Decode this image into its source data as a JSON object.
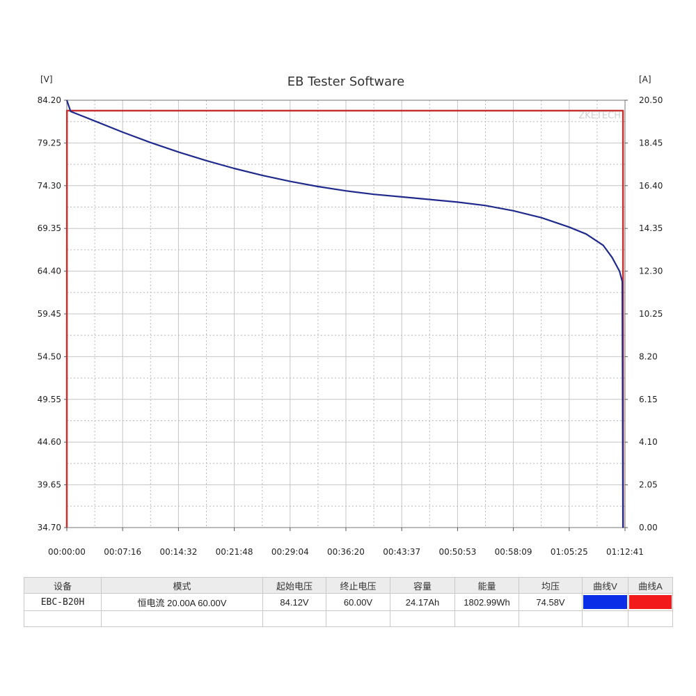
{
  "chart_data": {
    "type": "line",
    "title": "EB Tester Software",
    "watermark": "ZKETECH",
    "y_left_unit": "[V]",
    "y_right_unit": "[A]",
    "y_left_ticks": [
      "84.20",
      "79.25",
      "74.30",
      "69.35",
      "64.40",
      "59.45",
      "54.50",
      "49.55",
      "44.60",
      "39.65",
      "34.70"
    ],
    "y_right_ticks": [
      "20.50",
      "18.45",
      "16.40",
      "14.35",
      "12.30",
      "10.25",
      "8.20",
      "6.15",
      "4.10",
      "2.05",
      "0.00"
    ],
    "x_ticks": [
      "00:00:00",
      "00:07:16",
      "00:14:32",
      "00:21:48",
      "00:29:04",
      "00:36:20",
      "00:43:37",
      "00:50:53",
      "00:58:09",
      "01:05:25",
      "01:12:41"
    ],
    "ylim_left": [
      34.7,
      84.2
    ],
    "ylim_right": [
      0,
      20.5
    ],
    "xlim": [
      "00:00:00",
      "01:12:41"
    ],
    "grid": true,
    "series": [
      {
        "name": "曲线V",
        "axis": "left",
        "color": "#1f2a8c",
        "x": [
          "00:00:00",
          "00:00:30",
          "00:03:38",
          "00:07:16",
          "00:10:54",
          "00:14:32",
          "00:18:10",
          "00:21:48",
          "00:25:26",
          "00:29:04",
          "00:32:42",
          "00:36:20",
          "00:39:58",
          "00:43:37",
          "00:47:15",
          "00:50:53",
          "00:54:31",
          "00:58:09",
          "01:01:47",
          "01:05:25",
          "01:07:38",
          "01:09:50",
          "01:11:00",
          "01:11:58",
          "01:12:20",
          "01:12:25"
        ],
        "values": [
          84.2,
          82.9,
          81.8,
          80.5,
          79.3,
          78.2,
          77.2,
          76.3,
          75.5,
          74.8,
          74.2,
          73.7,
          73.3,
          73.0,
          72.7,
          72.4,
          72.0,
          71.4,
          70.6,
          69.5,
          68.7,
          67.4,
          66.0,
          64.4,
          63.2,
          34.7
        ]
      },
      {
        "name": "曲线A",
        "axis": "right",
        "color": "#c83030",
        "x": [
          "00:00:00",
          "00:00:01",
          "01:12:25",
          "01:12:26"
        ],
        "values": [
          0.0,
          20.0,
          20.0,
          0.0
        ]
      }
    ]
  },
  "info_table": {
    "headers": [
      "设备",
      "模式",
      "起始电压",
      "终止电压",
      "容量",
      "能量",
      "均压",
      "曲线V",
      "曲线A"
    ],
    "device": "EBC-B20H",
    "mode": "恒电流  20.00A  60.00V",
    "start_voltage": "84.12V",
    "end_voltage": "60.00V",
    "capacity": "24.17Ah",
    "energy": "1802.99Wh",
    "avg_voltage": "74.58V",
    "curve_v_color": "#0a2ee8",
    "curve_a_color": "#f21a1a"
  }
}
